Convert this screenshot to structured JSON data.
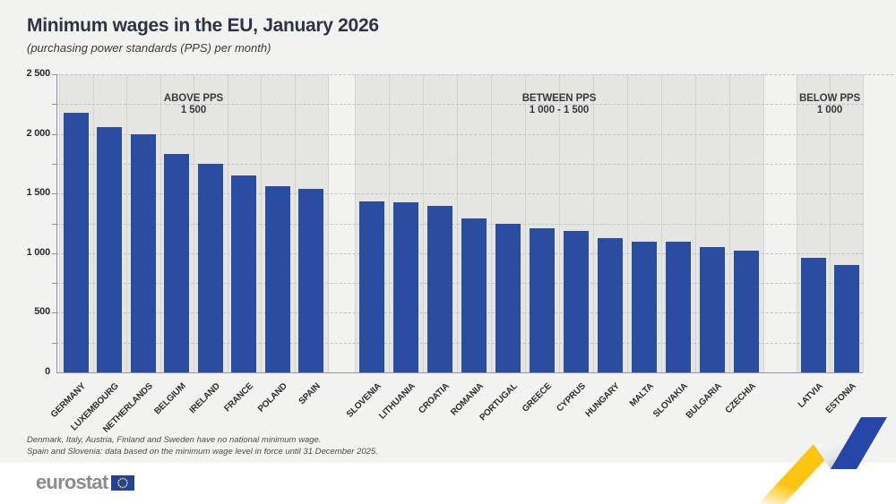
{
  "header": {
    "title": "Minimum wages in the EU, January 2026",
    "subtitle": "(purchasing power standards (PPS) per month)"
  },
  "chart_data": {
    "type": "bar",
    "title": "Minimum wages in the EU, January 2026",
    "subtitle": "(purchasing power standards (PPS) per month)",
    "ylabel": "PPS per month",
    "ylim": [
      0,
      2500
    ],
    "grid_step": 250,
    "grid": true,
    "y_ticks": [
      {
        "value": 0,
        "label": "0"
      },
      {
        "value": 500,
        "label": "500"
      },
      {
        "value": 1000,
        "label": "1 000"
      },
      {
        "value": 1500,
        "label": "1 500"
      },
      {
        "value": 2000,
        "label": "2 000"
      },
      {
        "value": 2500,
        "label": "2 500"
      }
    ],
    "groups": [
      {
        "label_lines": [
          "ABOVE PPS",
          "1 500"
        ],
        "categories": [
          "GERMANY",
          "LUXEMBOURG",
          "NETHERLANDS",
          "BELGIUM",
          "IRELAND",
          "FRANCE",
          "POLAND",
          "SPAIN"
        ],
        "values": [
          2175,
          2055,
          1995,
          1835,
          1750,
          1650,
          1560,
          1540
        ]
      },
      {
        "label_lines": [
          "BETWEEN PPS",
          "1 000 - 1 500"
        ],
        "categories": [
          "SLOVENIA",
          "LITHUANIA",
          "CROATIA",
          "ROMANIA",
          "PORTUGAL",
          "GREECE",
          "CYPRUS",
          "HUNGARY",
          "MALTA",
          "SLOVAKIA",
          "BULGARIA",
          "CZECHIA"
        ],
        "values": [
          1435,
          1430,
          1395,
          1295,
          1250,
          1210,
          1190,
          1130,
          1100,
          1095,
          1055,
          1020
        ]
      },
      {
        "label_lines": [
          "BELOW PPS",
          "1 000"
        ],
        "categories": [
          "LATVIA",
          "ESTONIA"
        ],
        "values": [
          960,
          900
        ]
      }
    ]
  },
  "footnotes": [
    "Denmark, Italy, Austria, Finland and Sweden have no national minimum wage.",
    "Spain and Slovenia: data based on the minimum wage level in force until 31 December 2025."
  ],
  "logo": {
    "text": "eurostat"
  },
  "colors": {
    "bar": "#2b4da1",
    "panel_background": "#e5e5e2",
    "page_background": "#f2f2f0",
    "gap_background": "#f6f6f4",
    "gridline": "#c3c3c0",
    "slot_line": "#d3d3d0",
    "axis": "#8e9198",
    "accent_yellow": "#fdc513",
    "accent_blue": "#2646a8",
    "flag_blue": "#24429c",
    "flag_star_yellow": "#f8d12e"
  }
}
